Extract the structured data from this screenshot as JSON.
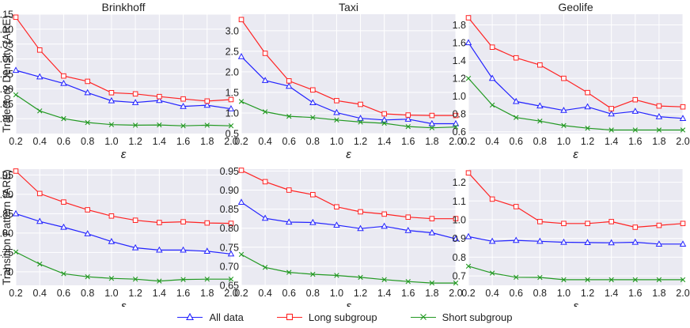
{
  "chart_data": {
    "type": "line",
    "x": [
      0.2,
      0.4,
      0.6,
      0.8,
      1.0,
      1.2,
      1.4,
      1.6,
      1.8,
      2.0
    ],
    "xlabel": "ε",
    "xticks": [
      "0.2",
      "0.4",
      "0.6",
      "0.8",
      "1.0",
      "1.2",
      "1.4",
      "1.6",
      "1.8",
      "2.0"
    ],
    "xlim": [
      0.2,
      2.0
    ],
    "grid": true,
    "legend": {
      "position": "bottom-center",
      "entries": [
        {
          "key": "all",
          "label": "All data",
          "color": "#2222ff",
          "marker": "triangle"
        },
        {
          "key": "long",
          "label": "Long subgroup",
          "color": "#ff2222",
          "marker": "square"
        },
        {
          "key": "short",
          "label": "Short subgroup",
          "color": "#229922",
          "marker": "x"
        }
      ]
    },
    "subplots": [
      {
        "title": "Brinkhoff",
        "ylabel": "Trajectory Density (ARE)",
        "row": 0,
        "col": 0,
        "ylim": [
          0.75,
          1.15
        ],
        "yticks": [
          "0.80",
          "0.85",
          "0.90",
          "0.95",
          "1.00",
          "1.05",
          "1.10",
          "1.15"
        ],
        "series": [
          {
            "name": "All data",
            "values": [
              0.962,
              0.94,
              0.918,
              0.887,
              0.86,
              0.854,
              0.861,
              0.841,
              0.845,
              0.833
            ]
          },
          {
            "name": "Long subgroup",
            "values": [
              1.14,
              1.03,
              0.943,
              0.925,
              0.887,
              0.883,
              0.874,
              0.866,
              0.859,
              0.864
            ]
          },
          {
            "name": "Short subgroup",
            "values": [
              0.88,
              0.826,
              0.8,
              0.787,
              0.78,
              0.778,
              0.779,
              0.776,
              0.778,
              0.776
            ]
          }
        ]
      },
      {
        "title": "Taxi",
        "ylabel": "",
        "row": 0,
        "col": 1,
        "ylim": [
          0.5,
          3.4
        ],
        "yticks": [
          "0.5",
          "1.0",
          "1.5",
          "2.0",
          "2.5",
          "3.0"
        ],
        "series": [
          {
            "name": "All data",
            "values": [
              2.37,
              1.79,
              1.65,
              1.25,
              1.01,
              0.87,
              0.83,
              0.85,
              0.74,
              0.74
            ]
          },
          {
            "name": "Long subgroup",
            "values": [
              3.27,
              2.45,
              1.78,
              1.56,
              1.3,
              1.21,
              0.98,
              0.95,
              0.94,
              0.94
            ]
          },
          {
            "name": "Short subgroup",
            "values": [
              1.28,
              1.03,
              0.92,
              0.89,
              0.83,
              0.78,
              0.75,
              0.67,
              0.64,
              0.66
            ]
          }
        ]
      },
      {
        "title": "Geolife",
        "ylabel": "",
        "row": 0,
        "col": 2,
        "ylim": [
          0.58,
          1.92
        ],
        "yticks": [
          "0.6",
          "0.8",
          "1.0",
          "1.2",
          "1.4",
          "1.6",
          "1.8"
        ],
        "series": [
          {
            "name": "All data",
            "values": [
              1.6,
              1.2,
              0.94,
              0.89,
              0.84,
              0.88,
              0.8,
              0.83,
              0.77,
              0.75
            ]
          },
          {
            "name": "Long subgroup",
            "values": [
              1.88,
              1.55,
              1.43,
              1.35,
              1.2,
              1.04,
              0.86,
              0.96,
              0.89,
              0.88
            ]
          },
          {
            "name": "Short subgroup",
            "values": [
              1.2,
              0.9,
              0.76,
              0.72,
              0.67,
              0.64,
              0.62,
              0.62,
              0.62,
              0.62
            ]
          }
        ]
      },
      {
        "title": "",
        "ylabel": "Transition Pattern (ARE)",
        "row": 1,
        "col": 0,
        "ylim": [
          0.665,
          0.965
        ],
        "yticks": [
          "0.70",
          "0.75",
          "0.80",
          "0.85",
          "0.90",
          "0.95"
        ],
        "series": [
          {
            "name": "All data",
            "values": [
              0.85,
              0.83,
              0.815,
              0.798,
              0.778,
              0.762,
              0.756,
              0.756,
              0.753,
              0.746
            ]
          },
          {
            "name": "Long subgroup",
            "values": [
              0.96,
              0.902,
              0.88,
              0.86,
              0.844,
              0.833,
              0.827,
              0.829,
              0.826,
              0.825
            ]
          },
          {
            "name": "Short subgroup",
            "values": [
              0.751,
              0.72,
              0.695,
              0.687,
              0.683,
              0.681,
              0.676,
              0.68,
              0.681,
              0.681
            ]
          }
        ]
      },
      {
        "title": "",
        "ylabel": "",
        "row": 1,
        "col": 1,
        "ylim": [
          0.65,
          0.955
        ],
        "yticks": [
          "0.65",
          "0.70",
          "0.75",
          "0.80",
          "0.85",
          "0.90",
          "0.95"
        ],
        "series": [
          {
            "name": "All data",
            "values": [
              0.868,
              0.826,
              0.816,
              0.815,
              0.808,
              0.799,
              0.805,
              0.794,
              0.788,
              0.772
            ]
          },
          {
            "name": "Long subgroup",
            "values": [
              0.952,
              0.922,
              0.9,
              0.888,
              0.856,
              0.843,
              0.837,
              0.829,
              0.825,
              0.825
            ]
          },
          {
            "name": "Short subgroup",
            "values": [
              0.731,
              0.697,
              0.684,
              0.679,
              0.676,
              0.671,
              0.665,
              0.66,
              0.656,
              0.656
            ]
          }
        ]
      },
      {
        "title": "",
        "ylabel": "",
        "row": 1,
        "col": 2,
        "ylim": [
          0.65,
          1.27
        ],
        "yticks": [
          "0.7",
          "0.8",
          "0.9",
          "1.0",
          "1.1",
          "1.2"
        ],
        "series": [
          {
            "name": "All data",
            "values": [
              0.91,
              0.885,
              0.89,
              0.885,
              0.88,
              0.878,
              0.877,
              0.88,
              0.87,
              0.87
            ]
          },
          {
            "name": "Long subgroup",
            "values": [
              1.25,
              1.11,
              1.07,
              0.99,
              0.98,
              0.98,
              0.99,
              0.96,
              0.97,
              0.98
            ]
          },
          {
            "name": "Short subgroup",
            "values": [
              0.752,
              0.715,
              0.693,
              0.692,
              0.68,
              0.68,
              0.68,
              0.68,
              0.68,
              0.68
            ]
          }
        ]
      }
    ]
  }
}
